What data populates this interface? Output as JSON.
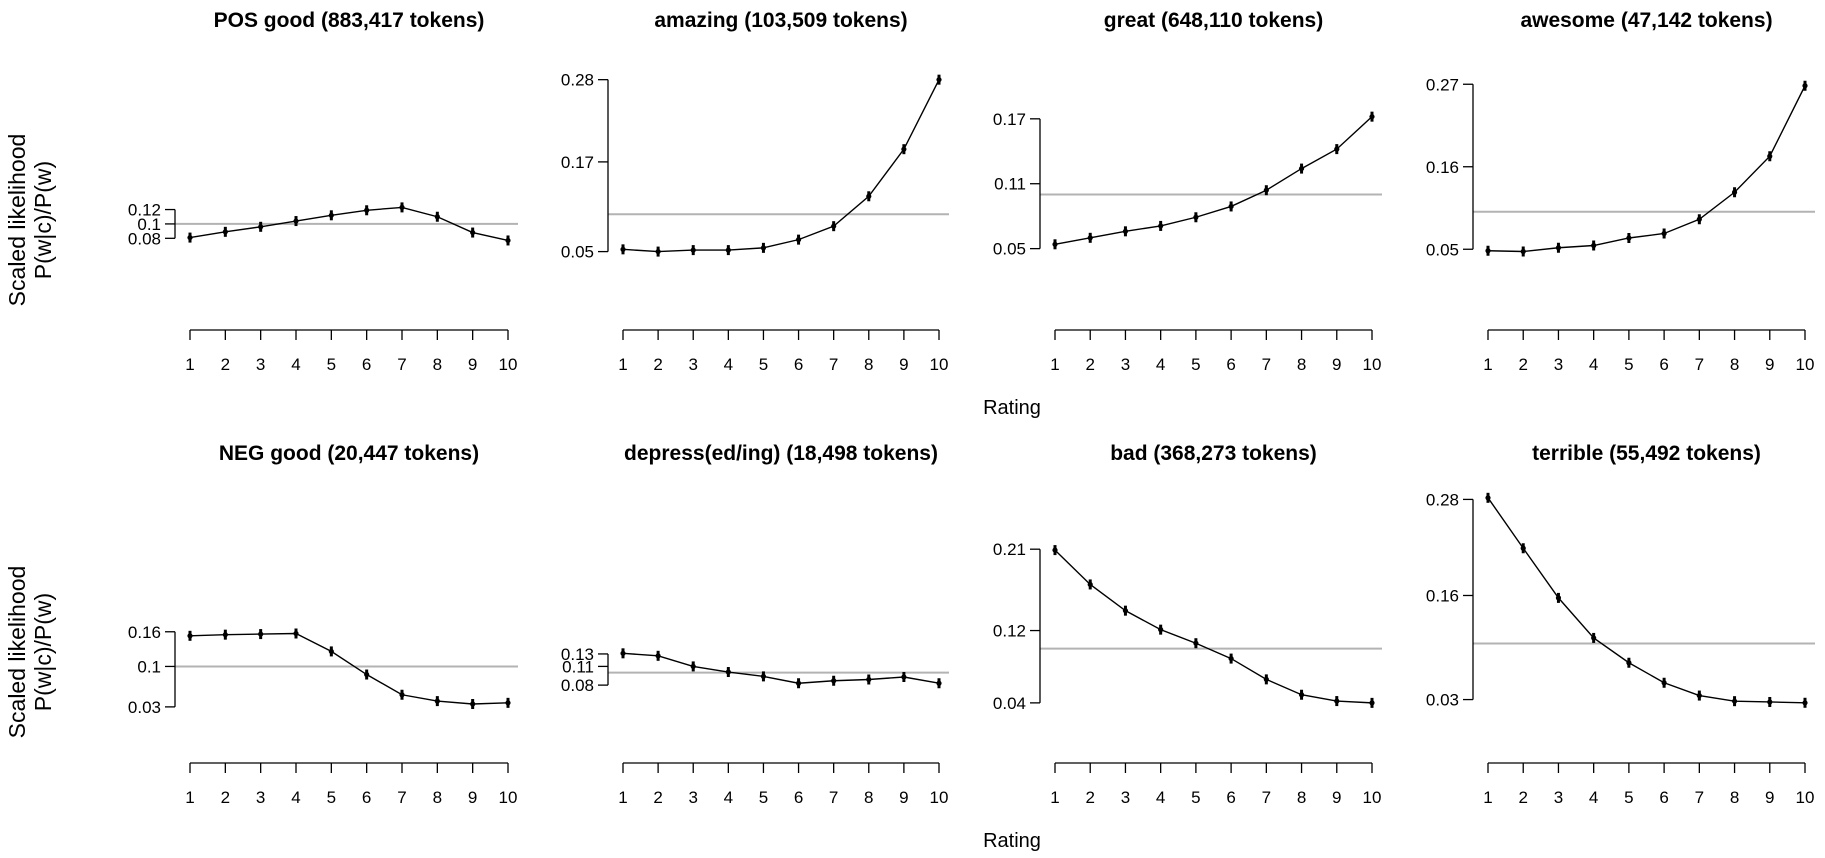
{
  "figure": {
    "y_axis_label_line1": "Scaled likelihood",
    "y_axis_label_line2": "P(w|c)/P(w)",
    "x_axis_label": "Rating"
  },
  "chart_data": [
    {
      "type": "line",
      "title": "POS good (883,417 tokens)",
      "xlabel": "Rating",
      "ylabel": "Scaled likelihood P(w|c)/P(w)",
      "x": [
        1,
        2,
        3,
        4,
        5,
        6,
        7,
        8,
        9,
        10
      ],
      "values": [
        0.081,
        0.089,
        0.096,
        0.104,
        0.112,
        0.119,
        0.123,
        0.11,
        0.088,
        0.077
      ],
      "yticks": [
        0.08,
        0.1,
        0.12
      ],
      "ytick_labels": [
        "0.08",
        "0.1",
        "0.12"
      ],
      "ylim": [
        0.022,
        0.335
      ],
      "reference_line": 0.1,
      "grid": false
    },
    {
      "type": "line",
      "title": "amazing (103,509 tokens)",
      "xlabel": "Rating",
      "ylabel": "Scaled likelihood P(w|c)/P(w)",
      "x": [
        1,
        2,
        3,
        4,
        5,
        6,
        7,
        8,
        9,
        10
      ],
      "values": [
        0.053,
        0.05,
        0.052,
        0.052,
        0.055,
        0.066,
        0.084,
        0.124,
        0.187,
        0.28
      ],
      "yticks": [
        0.05,
        0.17,
        0.28
      ],
      "ytick_labels": [
        "0.05",
        "0.17",
        "0.28"
      ],
      "ylim": [
        0.012,
        0.313
      ],
      "reference_line": 0.1,
      "grid": false
    },
    {
      "type": "line",
      "title": "great (648,110 tokens)",
      "xlabel": "Rating",
      "ylabel": "Scaled likelihood P(w|c)/P(w)",
      "x": [
        1,
        2,
        3,
        4,
        5,
        6,
        7,
        8,
        9,
        10
      ],
      "values": [
        0.054,
        0.06,
        0.066,
        0.071,
        0.079,
        0.089,
        0.104,
        0.124,
        0.142,
        0.172
      ],
      "yticks": [
        0.05,
        0.11,
        0.17
      ],
      "ytick_labels": [
        "0.05",
        "0.11",
        "0.17"
      ],
      "ylim": [
        0.021,
        0.229
      ],
      "reference_line": 0.1,
      "grid": false
    },
    {
      "type": "line",
      "title": "awesome (47,142 tokens)",
      "xlabel": "Rating",
      "ylabel": "Scaled likelihood P(w|c)/P(w)",
      "x": [
        1,
        2,
        3,
        4,
        5,
        6,
        7,
        8,
        9,
        10
      ],
      "values": [
        0.048,
        0.047,
        0.052,
        0.055,
        0.065,
        0.071,
        0.09,
        0.126,
        0.174,
        0.268
      ],
      "yticks": [
        0.05,
        0.16,
        0.27
      ],
      "ytick_labels": [
        "0.05",
        "0.16",
        "0.27"
      ],
      "ylim": [
        0.009,
        0.309
      ],
      "reference_line": 0.1,
      "grid": false
    },
    {
      "type": "line",
      "title": "NEG good (20,447 tokens)",
      "xlabel": "Rating",
      "ylabel": "Scaled likelihood P(w|c)/P(w)",
      "x": [
        1,
        2,
        3,
        4,
        5,
        6,
        7,
        8,
        9,
        10
      ],
      "values": [
        0.153,
        0.155,
        0.156,
        0.157,
        0.126,
        0.086,
        0.051,
        0.04,
        0.035,
        0.037
      ],
      "yticks": [
        0.03,
        0.1,
        0.16
      ],
      "ytick_labels": [
        "0.03",
        "0.1",
        "0.16"
      ],
      "ylim": [
        -0.01,
        0.414
      ],
      "reference_line": 0.1,
      "grid": false
    },
    {
      "type": "line",
      "title": "depress(ed/ing) (18,498 tokens)",
      "xlabel": "Rating",
      "ylabel": "Scaled likelihood P(w|c)/P(w)",
      "x": [
        1,
        2,
        3,
        4,
        5,
        6,
        7,
        8,
        9,
        10
      ],
      "values": [
        0.131,
        0.127,
        0.11,
        0.101,
        0.094,
        0.083,
        0.087,
        0.089,
        0.093,
        0.083
      ],
      "yticks": [
        0.08,
        0.11,
        0.13
      ],
      "ytick_labels": [
        "0.08",
        "0.11",
        "0.13"
      ],
      "ylim": [
        0.008,
        0.401
      ],
      "reference_line": 0.1,
      "grid": false
    },
    {
      "type": "line",
      "title": "bad (368,273 tokens)",
      "xlabel": "Rating",
      "ylabel": "Scaled likelihood P(w|c)/P(w)",
      "x": [
        1,
        2,
        3,
        4,
        5,
        6,
        7,
        8,
        9,
        10
      ],
      "values": [
        0.209,
        0.171,
        0.142,
        0.121,
        0.106,
        0.089,
        0.066,
        0.049,
        0.042,
        0.04
      ],
      "yticks": [
        0.04,
        0.12,
        0.21
      ],
      "ytick_labels": [
        "0.04",
        "0.12",
        "0.21"
      ],
      "ylim": [
        0.01,
        0.281
      ],
      "reference_line": 0.1,
      "grid": false
    },
    {
      "type": "line",
      "title": "terrible (55,492 tokens)",
      "xlabel": "Rating",
      "ylabel": "Scaled likelihood P(w|c)/P(w)",
      "x": [
        1,
        2,
        3,
        4,
        5,
        6,
        7,
        8,
        9,
        10
      ],
      "values": [
        0.282,
        0.219,
        0.157,
        0.107,
        0.076,
        0.051,
        0.035,
        0.028,
        0.027,
        0.026
      ],
      "yticks": [
        0.03,
        0.16,
        0.28
      ],
      "ytick_labels": [
        "0.03",
        "0.16",
        "0.28"
      ],
      "ylim": [
        -0.008,
        0.298
      ],
      "reference_line": 0.1,
      "grid": false
    }
  ]
}
